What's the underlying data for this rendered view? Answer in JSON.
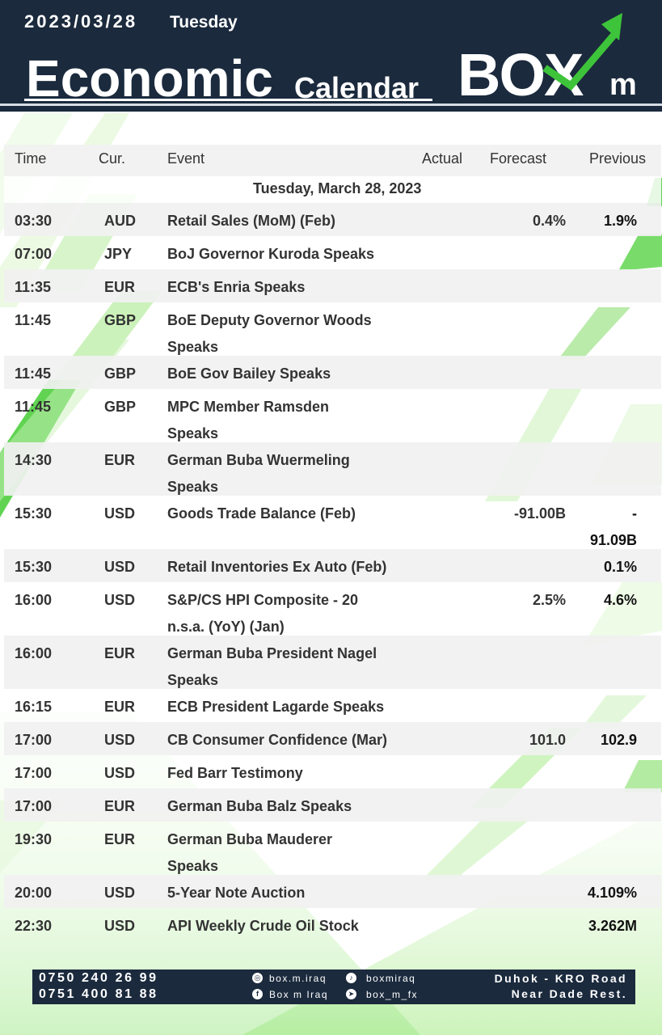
{
  "header": {
    "date": "2023/03/28",
    "weekday": "Tuesday",
    "title_big": "Economic",
    "title_small": "Calendar",
    "logo_text": "BOX",
    "logo_suffix": "m"
  },
  "colors": {
    "navy": "#1b2a3d",
    "accent_green": "#3ec43a",
    "light_green": "#a8ec8c",
    "row_gray": "#f1f1f1"
  },
  "table": {
    "columns": {
      "time": "Time",
      "currency": "Cur.",
      "event": "Event",
      "actual": "Actual",
      "forecast": "Forecast",
      "previous": "Previous"
    },
    "date_label": "Tuesday, March 28, 2023",
    "rows": [
      {
        "time": "03:30",
        "cur": "AUD",
        "event": "Retail Sales (MoM) (Feb)",
        "event2": "",
        "forecast": "0.4%",
        "previous": "1.9%",
        "previous2": ""
      },
      {
        "time": "07:00",
        "cur": "JPY",
        "event": "BoJ Governor Kuroda Speaks",
        "event2": "",
        "forecast": "",
        "previous": "",
        "previous2": ""
      },
      {
        "time": "11:35",
        "cur": "EUR",
        "event": "ECB's Enria Speaks",
        "event2": "",
        "forecast": "",
        "previous": "",
        "previous2": ""
      },
      {
        "time": "11:45",
        "cur": "GBP",
        "event": "BoE Deputy Governor Woods",
        "event2": "Speaks",
        "forecast": "",
        "previous": "",
        "previous2": ""
      },
      {
        "time": "11:45",
        "cur": "GBP",
        "event": "BoE Gov Bailey Speaks",
        "event2": "",
        "forecast": "",
        "previous": "",
        "previous2": ""
      },
      {
        "time": "11:45",
        "cur": "GBP",
        "event": "MPC Member Ramsden",
        "event2": "Speaks",
        "forecast": "",
        "previous": "",
        "previous2": ""
      },
      {
        "time": "14:30",
        "cur": "EUR",
        "event": "German Buba Wuermeling",
        "event2": "Speaks",
        "forecast": "",
        "previous": "",
        "previous2": ""
      },
      {
        "time": "15:30",
        "cur": "USD",
        "event": "Goods Trade Balance (Feb)",
        "event2": "",
        "forecast": "-91.00B",
        "previous": "-",
        "previous2": "91.09B"
      },
      {
        "time": "15:30",
        "cur": "USD",
        "event": "Retail Inventories Ex Auto (Feb)",
        "event2": "",
        "forecast": "",
        "previous": "0.1%",
        "previous2": ""
      },
      {
        "time": "16:00",
        "cur": "USD",
        "event": "S&P/CS HPI Composite - 20",
        "event2": "n.s.a. (YoY) (Jan)",
        "forecast": "2.5%",
        "previous": "4.6%",
        "previous2": ""
      },
      {
        "time": "16:00",
        "cur": "EUR",
        "event": "German Buba President Nagel",
        "event2": "Speaks",
        "forecast": "",
        "previous": "",
        "previous2": ""
      },
      {
        "time": "16:15",
        "cur": "EUR",
        "event": "ECB President Lagarde Speaks",
        "event2": "",
        "forecast": "",
        "previous": "",
        "previous2": ""
      },
      {
        "time": "17:00",
        "cur": "USD",
        "event": "CB Consumer Confidence (Mar)",
        "event2": "",
        "forecast": "101.0",
        "previous": "102.9",
        "previous2": ""
      },
      {
        "time": "17:00",
        "cur": "USD",
        "event": "Fed Barr Testimony",
        "event2": "",
        "forecast": "",
        "previous": "",
        "previous2": ""
      },
      {
        "time": "17:00",
        "cur": "EUR",
        "event": "German Buba Balz Speaks",
        "event2": "",
        "forecast": "",
        "previous": "",
        "previous2": ""
      },
      {
        "time": "19:30",
        "cur": "EUR",
        "event": "German Buba Mauderer",
        "event2": "Speaks",
        "forecast": "",
        "previous": "",
        "previous2": ""
      },
      {
        "time": "20:00",
        "cur": "USD",
        "event": "5-Year Note Auction",
        "event2": "",
        "forecast": "",
        "previous": "4.109%",
        "previous2": ""
      },
      {
        "time": "22:30",
        "cur": "USD",
        "event": "API Weekly Crude Oil Stock",
        "event2": "",
        "forecast": "",
        "previous": "3.262M",
        "previous2": ""
      }
    ]
  },
  "footer": {
    "phone1": "0750 240 26 99",
    "phone2": "0751 400 81 88",
    "instagram": "box.m.iraq",
    "facebook": "Box m Iraq",
    "tiktok": "boxmiraq",
    "telegram": "box_m_fx",
    "address1": "Duhok - KRO Road",
    "address2": "Near Dade Rest."
  }
}
